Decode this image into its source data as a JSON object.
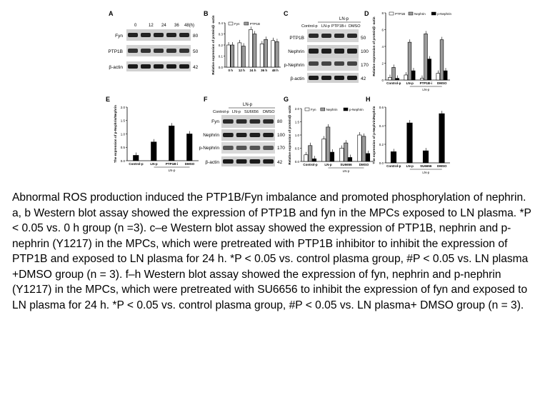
{
  "figure": {
    "panel_letters": [
      "A",
      "B",
      "C",
      "D",
      "E",
      "F",
      "G",
      "H"
    ],
    "blotA": {
      "time_labels": [
        "0",
        "12",
        "24",
        "36",
        "48(h)"
      ],
      "rows": [
        "Fyn",
        "PTP1B",
        "β-actin"
      ],
      "kda": [
        "80",
        "50",
        "42"
      ]
    },
    "blotC": {
      "group_top": "LN-p",
      "lanes": [
        "Control-p",
        "LN-p",
        "PTP1B-i",
        "DMSO"
      ],
      "rows": [
        "PTP1B",
        "Nephrin",
        "p-Nephrin",
        "β-actin"
      ],
      "kda": [
        "50",
        "100",
        "170",
        "42"
      ]
    },
    "blotF": {
      "group_top": "LN-p",
      "lanes": [
        "Control-p",
        "LN-p",
        "SU6656",
        "DMSO"
      ],
      "rows": [
        "Fyn",
        "Nephrin",
        "p-Nephrin",
        "β-actin"
      ],
      "kda": [
        "80",
        "100",
        "170",
        "42"
      ]
    },
    "sig_star": "*",
    "sig_hash": "#"
  },
  "chart_data": [
    {
      "panel": "B",
      "type": "bar",
      "categories": [
        "0 h",
        "12 h",
        "24 h",
        "36 h",
        "48 h"
      ],
      "series": [
        {
          "name": "Fyn",
          "values": [
            0.2,
            0.22,
            0.34,
            0.21,
            0.24
          ]
        },
        {
          "name": "PTP1B",
          "values": [
            0.2,
            0.19,
            0.3,
            0.25,
            0.23
          ]
        }
      ],
      "ylabel": "Relative expression of protein/β -actin",
      "ylim": [
        0,
        0.4
      ],
      "yticks": [
        "0.0",
        "0.1",
        "0.2",
        "0.3",
        "0.4"
      ]
    },
    {
      "panel": "D",
      "type": "bar",
      "categories": [
        "Control-p",
        "LN-p",
        "PTP1B-i",
        "DMSO"
      ],
      "group_label": "LN-p",
      "series": [
        {
          "name": "PTP1B",
          "values": [
            0.3,
            0.6,
            0.2,
            0.8
          ]
        },
        {
          "name": "Nephrin",
          "values": [
            1.5,
            4.5,
            5.5,
            4.8
          ]
        },
        {
          "name": "p-Nephrin",
          "values": [
            0.2,
            1.1,
            2.5,
            1.1
          ]
        }
      ],
      "ylabel": "Relative expression of protein/β -actin",
      "ylim": [
        0,
        8
      ],
      "yticks": [
        "0",
        "2",
        "4",
        "6",
        "8"
      ]
    },
    {
      "panel": "E",
      "type": "bar",
      "categories": [
        "Control-p",
        "LN-p",
        "PTP1B-i",
        "DMSO"
      ],
      "group_label": "LN-p",
      "series": [
        {
          "values": [
            0.2,
            0.7,
            1.3,
            1.0
          ]
        }
      ],
      "ylabel": "The expression of p-Nephrin/Nephrin",
      "ylim": [
        0,
        2.0
      ],
      "yticks": [
        "0.0",
        "0.5",
        "1.0",
        "1.5",
        "2.0"
      ]
    },
    {
      "panel": "G",
      "type": "bar",
      "categories": [
        "Control-p",
        "LN-p",
        "SU6656",
        "DMSO"
      ],
      "group_label": "LN-p",
      "series": [
        {
          "name": "Fyn",
          "values": [
            0.25,
            0.85,
            0.5,
            1.0
          ]
        },
        {
          "name": "Nephrin",
          "values": [
            0.6,
            1.3,
            0.7,
            0.95
          ]
        },
        {
          "name": "p-Nephrin",
          "values": [
            0.1,
            0.35,
            0.15,
            0.3
          ]
        }
      ],
      "ylabel": "Relative expression of protein/β -actin",
      "ylim": [
        0,
        2.0
      ],
      "yticks": [
        "0.0",
        "0.5",
        "1.0",
        "1.5",
        "2.0"
      ]
    },
    {
      "panel": "H",
      "type": "bar",
      "categories": [
        "Control-p",
        "LN-p",
        "SU6656",
        "DMSO"
      ],
      "group_label": "LN-p",
      "series": [
        {
          "values": [
            0.12,
            0.43,
            0.13,
            0.53
          ]
        }
      ],
      "ylabel": "The expression of p-Nephrin/Nephrin",
      "ylim": [
        0,
        0.6
      ],
      "yticks": [
        "0.0",
        "0.2",
        "0.4",
        "0.6"
      ]
    }
  ],
  "caption": {
    "title": "Abnormal ROS production induced the PTP1B/Fyn imbalance and promoted phosphorylation of nephrin.",
    "body": "a, b Western blot assay showed the expression of PTP1B and fyn in the MPCs exposed to LN plasma. *P < 0.05 vs. 0 h group (n =3). c–e Western blot assay showed the expression of PTP1B, nephrin and p-nephrin (Y1217) in the MPCs, which were pretreated with PTP1B inhibitor to inhibit the expression of PTP1B and exposed to LN plasma for 24 h. *P < 0.05 vs. control plasma group, #P < 0.05 vs. LN plasma +DMSO group (n = 3). f–h Western blot assay showed the expression of fyn, nephrin and p-nephrin (Y1217) in the MPCs, which were pretreated with SU6656 to inhibit the expression of fyn and exposed to LN plasma for 24 h. *P < 0.05 vs. control plasma group, #P < 0.05 vs. LN plasma+ DMSO group (n = 3)."
  }
}
